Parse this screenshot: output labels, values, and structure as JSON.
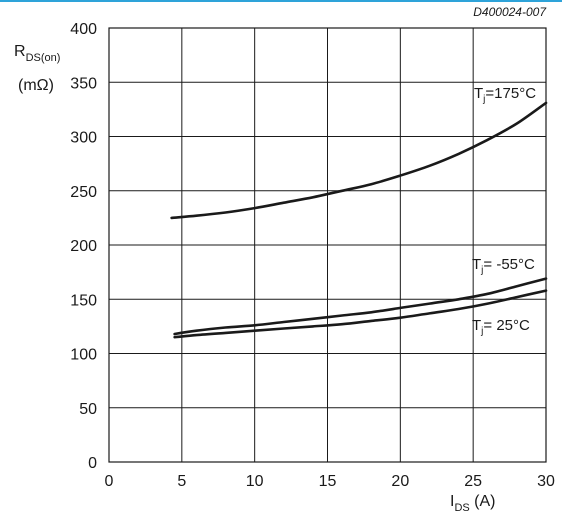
{
  "figure_id": "D400024-007",
  "colors": {
    "accent": "#2ea3d9",
    "curve": "#1a1a1a",
    "grid": "#1a1a1a"
  },
  "chart_data": {
    "type": "line",
    "title": "",
    "ylabel": {
      "main": "R",
      "sub": "DS(on)",
      "unit": "(mΩ)"
    },
    "xlabel": {
      "main": "I",
      "sub": "DS",
      "unit": " (A)"
    },
    "xlim": [
      0,
      30
    ],
    "ylim": [
      0,
      400
    ],
    "x_ticks": [
      0,
      5,
      10,
      15,
      20,
      25,
      30
    ],
    "y_ticks": [
      0,
      50,
      100,
      150,
      200,
      250,
      300,
      350,
      400
    ],
    "grid": true,
    "series": [
      {
        "name": "Tj=175°C",
        "label_main": "T",
        "label_sub": "j",
        "label_rest": "=175°C",
        "x": [
          4.3,
          6,
          8,
          10,
          12,
          14,
          16,
          18,
          20,
          22,
          24,
          26,
          28,
          30
        ],
        "y": [
          225,
          227,
          230,
          234,
          239,
          244,
          250,
          256,
          264,
          273,
          284,
          297,
          312,
          331
        ]
      },
      {
        "name": "Tj= -55°C",
        "label_main": "T",
        "label_sub": "j",
        "label_rest": "= -55°C",
        "x": [
          4.5,
          6,
          8,
          10,
          12,
          14,
          16,
          18,
          20,
          22,
          24,
          26,
          28,
          30
        ],
        "y": [
          118,
          121,
          124,
          126,
          129,
          132,
          135,
          138,
          142,
          146,
          150,
          155,
          162,
          169
        ]
      },
      {
        "name": "Tj= 25°C",
        "label_main": "T",
        "label_sub": "j",
        "label_rest": "= 25°C",
        "x": [
          4.5,
          6,
          8,
          10,
          12,
          14,
          16,
          18,
          20,
          22,
          24,
          26,
          28,
          30
        ],
        "y": [
          115,
          117,
          119,
          121,
          123,
          125,
          127,
          130,
          133,
          137,
          141,
          146,
          152,
          158
        ]
      }
    ]
  }
}
